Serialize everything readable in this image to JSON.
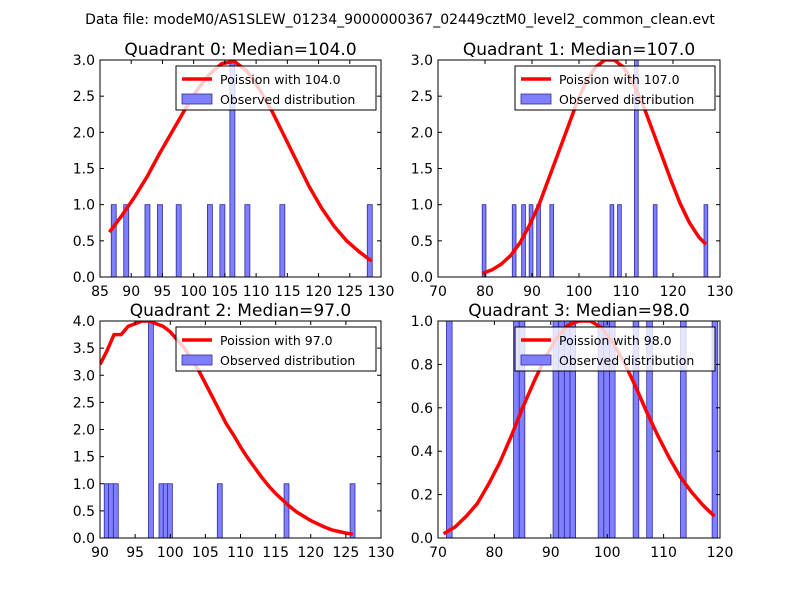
{
  "figure": {
    "suptitle": "Data file: modeM0/AS1SLEW_01234_9000000367_02449cztM0_level2_common_clean.evt"
  },
  "colors": {
    "curve": "#ff0000",
    "bar_fill": "#7f7fff",
    "bar_edge": "#2b2b99",
    "axes": "#000000",
    "background": "#ffffff"
  },
  "chart_data": [
    {
      "type": "bar",
      "title": "Quadrant 0: Median=104.0",
      "xlim": [
        85,
        130
      ],
      "ylim": [
        0,
        3
      ],
      "xticks": [
        85,
        90,
        95,
        100,
        105,
        110,
        115,
        120,
        125,
        130
      ],
      "yticks": [
        0.0,
        0.5,
        1.0,
        1.5,
        2.0,
        2.5,
        3.0
      ],
      "bin_width": 0.8,
      "bars": [
        {
          "x": 86.8,
          "count": 1
        },
        {
          "x": 88.8,
          "count": 1
        },
        {
          "x": 92.2,
          "count": 1
        },
        {
          "x": 94.2,
          "count": 1
        },
        {
          "x": 97.2,
          "count": 1
        },
        {
          "x": 102.2,
          "count": 1
        },
        {
          "x": 104.2,
          "count": 1
        },
        {
          "x": 105.8,
          "count": 3
        },
        {
          "x": 108.2,
          "count": 1
        },
        {
          "x": 113.8,
          "count": 1
        },
        {
          "x": 127.8,
          "count": 1
        }
      ],
      "curve": {
        "x": [
          86.5,
          88.5,
          90.5,
          92.5,
          94.5,
          96.5,
          98.5,
          100.5,
          102.5,
          104.5,
          106.5,
          108.5,
          110.5,
          112.5,
          114.5,
          116.5,
          118.5,
          120.5,
          122.5,
          124.5,
          126.5,
          128.5
        ],
        "y": [
          0.62,
          0.85,
          1.1,
          1.38,
          1.7,
          2.0,
          2.3,
          2.58,
          2.8,
          2.95,
          2.98,
          2.85,
          2.6,
          2.3,
          1.95,
          1.6,
          1.25,
          0.95,
          0.7,
          0.5,
          0.35,
          0.22
        ]
      },
      "legend": [
        {
          "kind": "line",
          "label": "Poission with 104.0"
        },
        {
          "kind": "patch",
          "label": "Observed distribution"
        }
      ]
    },
    {
      "type": "bar",
      "title": "Quadrant 1: Median=107.0",
      "xlim": [
        70,
        130
      ],
      "ylim": [
        0,
        3
      ],
      "xticks": [
        70,
        80,
        90,
        100,
        110,
        120,
        130
      ],
      "yticks": [
        0.0,
        0.5,
        1.0,
        1.5,
        2.0,
        2.5,
        3.0
      ],
      "bin_width": 0.8,
      "bars": [
        {
          "x": 79.4,
          "count": 1
        },
        {
          "x": 85.8,
          "count": 1
        },
        {
          "x": 87.8,
          "count": 1
        },
        {
          "x": 89.4,
          "count": 1
        },
        {
          "x": 91.0,
          "count": 1
        },
        {
          "x": 93.8,
          "count": 1
        },
        {
          "x": 106.6,
          "count": 1
        },
        {
          "x": 108.2,
          "count": 1
        },
        {
          "x": 111.8,
          "count": 3
        },
        {
          "x": 115.8,
          "count": 1
        },
        {
          "x": 126.6,
          "count": 1
        }
      ],
      "curve": {
        "x": [
          79.5,
          81.5,
          83.5,
          85.5,
          87.5,
          89.5,
          91.5,
          93.5,
          95.5,
          97.5,
          99.5,
          101.5,
          103.5,
          105.5,
          107.5,
          109.5,
          111.5,
          113.5,
          115.5,
          117.5,
          119.5,
          121.5,
          123.5,
          125.5,
          127.0
        ],
        "y": [
          0.05,
          0.1,
          0.18,
          0.3,
          0.48,
          0.72,
          1.0,
          1.35,
          1.7,
          2.05,
          2.4,
          2.7,
          2.9,
          3.0,
          3.0,
          2.9,
          2.68,
          2.4,
          2.05,
          1.7,
          1.35,
          1.02,
          0.75,
          0.55,
          0.45
        ]
      },
      "legend": [
        {
          "kind": "line",
          "label": "Poission with 107.0"
        },
        {
          "kind": "patch",
          "label": "Observed distribution"
        }
      ]
    },
    {
      "type": "bar",
      "title": "Quadrant 2: Median=97.0",
      "xlim": [
        90,
        130
      ],
      "ylim": [
        0,
        4
      ],
      "xticks": [
        90,
        95,
        100,
        105,
        110,
        115,
        120,
        125,
        130
      ],
      "yticks": [
        0.0,
        0.5,
        1.0,
        1.5,
        2.0,
        2.5,
        3.0,
        3.5,
        4.0
      ],
      "bin_width": 0.7,
      "bars": [
        {
          "x": 90.6,
          "count": 1
        },
        {
          "x": 91.2,
          "count": 1
        },
        {
          "x": 91.9,
          "count": 1
        },
        {
          "x": 96.9,
          "count": 4
        },
        {
          "x": 98.4,
          "count": 1
        },
        {
          "x": 99.0,
          "count": 1
        },
        {
          "x": 99.6,
          "count": 1
        },
        {
          "x": 106.7,
          "count": 1
        },
        {
          "x": 116.2,
          "count": 1
        },
        {
          "x": 125.6,
          "count": 1
        }
      ],
      "curve": {
        "x": [
          90.0,
          91.0,
          92.0,
          93.0,
          94.0,
          95.0,
          96.0,
          97.0,
          98.0,
          99.0,
          100.0,
          101.0,
          102.0,
          103.0,
          104.0,
          105.0,
          106.0,
          107.0,
          108.0,
          109.0,
          110.0,
          111.0,
          112.0,
          113.0,
          114.0,
          115.0,
          116.0,
          117.0,
          118.0,
          119.0,
          120.0,
          121.0,
          122.0,
          123.0,
          124.0,
          125.0,
          126.0
        ],
        "y": [
          3.2,
          3.45,
          3.75,
          3.75,
          3.9,
          3.95,
          4.0,
          4.0,
          3.95,
          3.9,
          3.8,
          3.65,
          3.5,
          3.3,
          3.1,
          2.85,
          2.6,
          2.35,
          2.1,
          1.9,
          1.68,
          1.48,
          1.3,
          1.12,
          0.96,
          0.82,
          0.7,
          0.58,
          0.48,
          0.4,
          0.32,
          0.26,
          0.2,
          0.15,
          0.12,
          0.09,
          0.07
        ]
      },
      "legend": [
        {
          "kind": "line",
          "label": "Poission with 97.0"
        },
        {
          "kind": "patch",
          "label": "Observed distribution"
        }
      ]
    },
    {
      "type": "bar",
      "title": "Quadrant 3: Median=98.0",
      "xlim": [
        70,
        120
      ],
      "ylim": [
        0,
        1
      ],
      "xticks": [
        70,
        80,
        90,
        100,
        110,
        120
      ],
      "yticks": [
        0.0,
        0.2,
        0.4,
        0.6,
        0.8,
        1.0
      ],
      "bin_width": 1.0,
      "bars": [
        {
          "x": 71.5,
          "count": 1
        },
        {
          "x": 83.4,
          "count": 1
        },
        {
          "x": 84.4,
          "count": 1
        },
        {
          "x": 90.4,
          "count": 1
        },
        {
          "x": 91.4,
          "count": 1
        },
        {
          "x": 92.4,
          "count": 1
        },
        {
          "x": 93.4,
          "count": 1
        },
        {
          "x": 98.4,
          "count": 1
        },
        {
          "x": 99.4,
          "count": 1
        },
        {
          "x": 100.4,
          "count": 1
        },
        {
          "x": 104.6,
          "count": 1
        },
        {
          "x": 107.0,
          "count": 1
        },
        {
          "x": 113.0,
          "count": 1
        },
        {
          "x": 118.6,
          "count": 1
        }
      ],
      "curve": {
        "x": [
          71.0,
          73.0,
          75.0,
          77.0,
          79.0,
          81.0,
          83.0,
          85.0,
          87.0,
          89.0,
          91.0,
          93.0,
          95.0,
          97.0,
          99.0,
          101.0,
          103.0,
          105.0,
          107.0,
          109.0,
          111.0,
          113.0,
          115.0,
          117.0,
          119.0
        ],
        "y": [
          0.02,
          0.05,
          0.1,
          0.16,
          0.25,
          0.35,
          0.47,
          0.6,
          0.72,
          0.83,
          0.92,
          0.98,
          1.0,
          1.0,
          0.97,
          0.9,
          0.81,
          0.7,
          0.58,
          0.47,
          0.37,
          0.28,
          0.21,
          0.15,
          0.1
        ]
      },
      "legend": [
        {
          "kind": "line",
          "label": "Poission with 98.0"
        },
        {
          "kind": "patch",
          "label": "Observed distribution"
        }
      ]
    }
  ]
}
